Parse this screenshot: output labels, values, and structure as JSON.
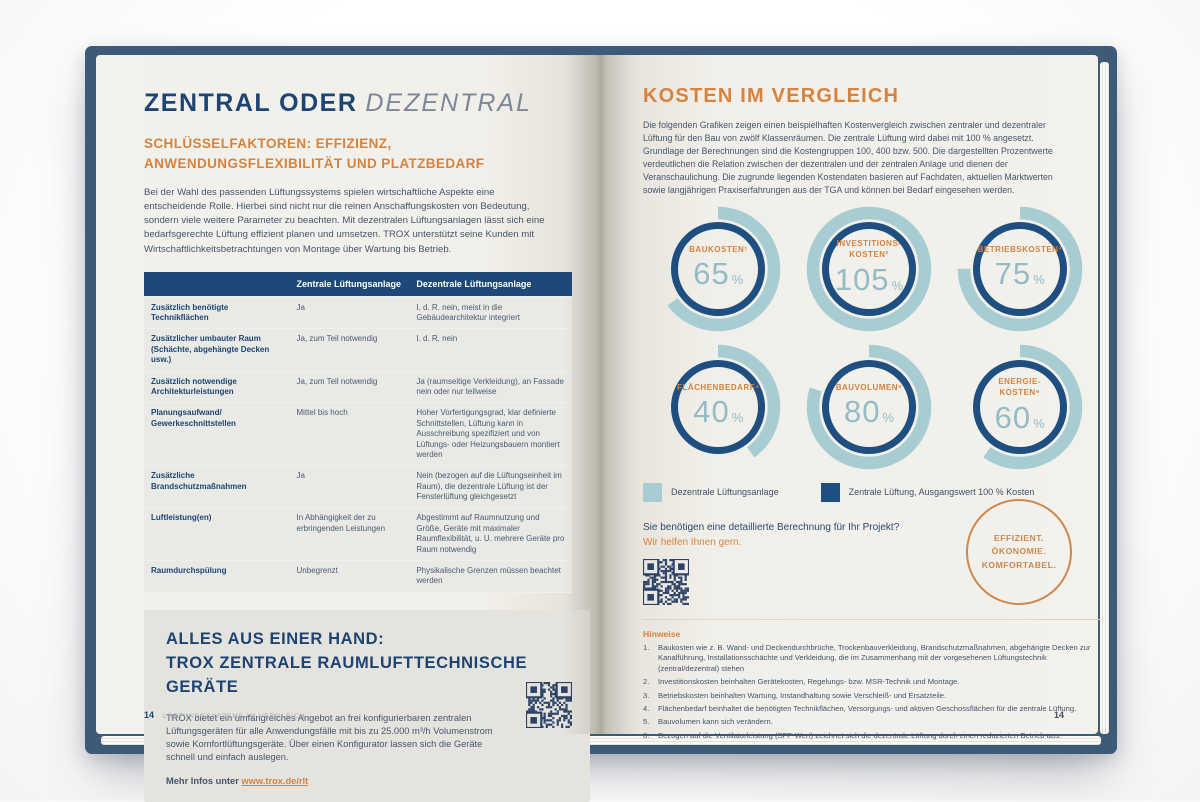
{
  "colors": {
    "accent_orange": "#d7823d",
    "navy": "#1c4474",
    "table_header": "#1d4878",
    "teal_arc": "#a7ccd2",
    "value_teal": "#93bcc6",
    "badge_orange": "#cd8850",
    "qr_ink": "#2c4166"
  },
  "book": {
    "left_page": {
      "title_main": "ZENTRAL ODER",
      "title_italic": "DEZENTRAL",
      "subtitle": "SCHLÜSSELFAKTOREN: EFFIZIENZ, ANWENDUNGSFLEXIBILITÄT UND PLATZBEDARF",
      "intro": "Bei der Wahl des passenden Lüftungssystems spielen wirtschaftliche Aspekte eine entscheidende Rolle. Hierbei sind nicht nur die reinen Anschaffungskosten von Bedeutung, sondern viele weitere Parameter zu beachten. Mit dezentralen Lüftungsanlagen lässt sich eine bedarfsgerechte Lüftung effizient planen und umsetzen. TROX unterstützt seine Kunden mit Wirtschaftlichkeitsbetrachtungen von Montage über Wartung bis Betrieb.",
      "table": {
        "headers": [
          "",
          "Zentrale Lüftungsanlage",
          "Dezentrale Lüftungsanlage"
        ],
        "rows": [
          {
            "label": "Zusätzlich benötigte Technikflächen",
            "central": "Ja",
            "decentral": "I. d. R. nein, meist in die Gebäudearchitektur integriert"
          },
          {
            "label": "Zusätzlicher umbauter Raum (Schächte, abgehängte Decken usw.)",
            "central": "Ja, zum Teil notwendig",
            "decentral": "I. d. R. nein"
          },
          {
            "label": "Zusätzlich notwendige Architekturleistungen",
            "central": "Ja, zum Teil notwendig",
            "decentral": "Ja (raumseitige Verkleidung), an Fassade nein oder nur teilweise"
          },
          {
            "label": "Planungsaufwand/ Gewerkeschnittstellen",
            "central": "Mittel bis hoch",
            "decentral": "Hoher Vorfertigungsgrad, klar definierte Schnittstellen, Lüftung kann in Ausschreibung spezifiziert und von Lüftungs- oder Heizungsbauern montiert werden"
          },
          {
            "label": "Zusätzliche Brandschutzmaßnahmen",
            "central": "Ja",
            "decentral": "Nein (bezogen auf die Lüftungseinheit im Raum), die dezentrale Lüftung ist der Fensterlüftung gleichgesetzt"
          },
          {
            "label": "Luftleistung(en)",
            "central": "In Abhängigkeit der zu erbringenden Leistungen",
            "decentral": "Abgestimmt auf Raumnutzung und Größe, Geräte mit maximaler Raumflexibilität, u. U. mehrere Geräte pro Raum notwendig"
          },
          {
            "label": "Raumdurchspülung",
            "central": "Unbegrenzt",
            "decentral": "Physikalische Grenzen müssen beachtet werden"
          }
        ]
      },
      "panel": {
        "heading_line1": "ALLES AUS EINER HAND:",
        "heading_line2": "TROX ZENTRALE RAUMLUFTTECHNISCHE GERÄTE",
        "body": "TROX bietet ein umfangreiches Angebot an frei konfigurierbaren zentralen Lüftungsgeräten für alle Anwendungsfälle mit bis zu 25.000 m³/h Volumenstrom sowie Komfortlüftungsgeräte. Über einen Konfigurator lassen sich die Geräte schnell und einfach auslegen.",
        "link_prefix": "Mehr Infos unter ",
        "link": "www.trox.de/rlt"
      },
      "footer": {
        "page_number": "14",
        "footer_label": "LÜFTUNGSSYSTEME IM VERGLEICH"
      }
    },
    "right_page": {
      "title": "KOSTEN IM VERGLEICH",
      "intro": "Die folgenden Grafiken zeigen einen beispielhaften Kostenvergleich zwischen zentraler und dezentraler Lüftung für den Bau von zwölf Klassenräumen. Die zentrale Lüftung wird dabei mit 100 % angesetzt. Grundlage der Berechnungen sind die Kostengruppen 100, 400 bzw. 500. Die dargestellten Prozentwerte verdeutlichen die Relation zwischen der dezentralen und der zentralen Anlage und dienen der Veranschaulichung. Die zugrunde liegenden Kostendaten basieren auf Fachdaten, aktuellen Marktwerten sowie langjährigen Praxiserfahrungen aus der TGA und können bei Bedarf eingesehen werden.",
      "legend": [
        {
          "color": "#a7ccd2",
          "label": "Dezentrale Lüftungsanlage"
        },
        {
          "color": "#1e4f80",
          "label": "Zentrale Lüftung, Ausgangswert 100 % Kosten"
        }
      ],
      "cta_question": "Sie benötigen eine detaillierte Berechnung für Ihr Projekt?",
      "cta_answer": "Wir helfen Ihnen gern.",
      "badge_lines": [
        "EFFIZIENT.",
        "ÖKONOMIE.",
        "KOMFORTABEL."
      ],
      "notes_title": "Hinweise",
      "notes": [
        {
          "num": "1.",
          "text": "Baukosten wie z. B. Wand- und Deckendurchbrüche, Trockenbauverkleidung, Brandschutzmaßnahmen, abgehängte Decken zur Kanalführung, Installationsschächte und Verkleidung, die im Zusammenhang mit der vorgesehenen Lüftungstechnik (zentral/dezentral) stehen"
        },
        {
          "num": "2.",
          "text": "Investitionskosten beinhalten Gerätekosten, Regelungs- bzw. MSR-Technik und Montage."
        },
        {
          "num": "3.",
          "text": "Betriebskosten beinhalten Wartung, Instandhaltung sowie Verschleiß- und Ersatzteile."
        },
        {
          "num": "4.",
          "text": "Flächenbedarf beinhaltet die benötigten Technikflächen, Versorgungs- und aktiven Geschossflächen für die zentrale Lüftung."
        },
        {
          "num": "5.",
          "text": "Bauvolumen kann sich verändern."
        },
        {
          "num": "6.",
          "text": "Bezogen auf die Ventilatorleistung (SFP-Wert) zeichnet sich die dezentrale Lüftung durch einen reduzierten Betrieb aus."
        }
      ],
      "footer_page_number": "14"
    }
  },
  "chart_data": {
    "type": "pie",
    "variant": "donut-comparison",
    "title": "KOSTEN IM VERGLEICH",
    "unit": "%",
    "baseline": {
      "label": "Zentrale Lüftung, Ausgangswert 100 % Kosten",
      "value": 100,
      "color": "#1e4f80"
    },
    "series_label": "Dezentrale Lüftungsanlage",
    "series_color": "#a7ccd2",
    "legend_position": "below",
    "categories": [
      "BAUKOSTEN",
      "INVESTITIONSKOSTEN",
      "BETRIEBSKOSTEN",
      "FLÄCHENBEDARF",
      "BAUVOLUMEN",
      "ENERGIEKOSTEN"
    ],
    "values": [
      65,
      105,
      75,
      40,
      80,
      60
    ],
    "donuts": [
      {
        "label": "BAUKOSTEN¹",
        "value": 65
      },
      {
        "label": "INVESTITIONS-\nKOSTEN²",
        "value": 105
      },
      {
        "label": "BETRIEBSKOSTEN³",
        "value": 75
      },
      {
        "label": "FLÄCHENBEDARF⁴",
        "value": 40
      },
      {
        "label": "BAUVOLUMEN⁵",
        "value": 80
      },
      {
        "label": "ENERGIE-\nKOSTEN⁶",
        "value": 60
      }
    ]
  }
}
